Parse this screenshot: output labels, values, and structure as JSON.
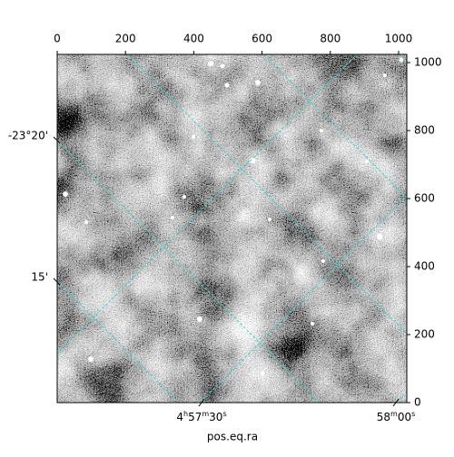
{
  "chart_data": {
    "type": "image",
    "xlim": [
      0,
      1024
    ],
    "ylim": [
      0,
      1024
    ],
    "xticks": [
      0,
      200,
      400,
      600,
      800,
      1000
    ],
    "yticks": [
      0,
      200,
      400,
      600,
      800,
      1000
    ],
    "ra_tick_labels": [
      "4h57m30s",
      "58m00s"
    ],
    "dec_tick_labels": [
      "-23°20'",
      "15'"
    ],
    "xlabel": "pos.eq.ra",
    "grid_color": "#3fd0d0"
  }
}
